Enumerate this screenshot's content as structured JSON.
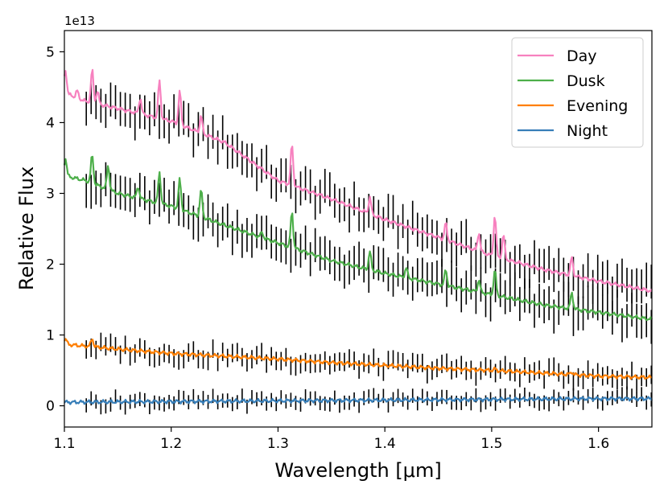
{
  "chart_data": {
    "type": "line",
    "title": "",
    "xlabel": "Wavelength [μm]",
    "ylabel": "Relative Flux",
    "y_offset_text": "1e13",
    "xlim": [
      1.1,
      1.65
    ],
    "ylim": [
      -0.3,
      5.3
    ],
    "x_ticks": [
      1.1,
      1.2,
      1.3,
      1.4,
      1.5,
      1.6
    ],
    "x_tick_labels": [
      "1.1",
      "1.2",
      "1.3",
      "1.4",
      "1.5",
      "1.6"
    ],
    "y_ticks": [
      0,
      1,
      2,
      3,
      4,
      5
    ],
    "y_tick_labels": [
      "0",
      "1",
      "2",
      "3",
      "4",
      "5"
    ],
    "grid": false,
    "legend_position": "top-right",
    "series": [
      {
        "name": "Day",
        "color": "#f781bf",
        "points": [
          [
            1.1,
            4.42
          ],
          [
            1.12,
            4.3
          ],
          [
            1.15,
            4.2
          ],
          [
            1.2,
            4.02
          ],
          [
            1.25,
            3.72
          ],
          [
            1.3,
            3.18
          ],
          [
            1.35,
            2.92
          ],
          [
            1.4,
            2.63
          ],
          [
            1.45,
            2.38
          ],
          [
            1.5,
            2.12
          ],
          [
            1.55,
            1.92
          ],
          [
            1.6,
            1.76
          ],
          [
            1.65,
            1.62
          ]
        ],
        "spikes": [
          [
            1.101,
            4.75
          ],
          [
            1.112,
            4.45
          ],
          [
            1.126,
            4.75
          ],
          [
            1.131,
            4.45
          ],
          [
            1.171,
            4.35
          ],
          [
            1.189,
            4.6
          ],
          [
            1.208,
            4.45
          ],
          [
            1.228,
            4.1
          ],
          [
            1.313,
            3.7
          ],
          [
            1.386,
            2.95
          ],
          [
            1.457,
            2.58
          ],
          [
            1.488,
            2.45
          ],
          [
            1.503,
            2.7
          ],
          [
            1.511,
            2.42
          ],
          [
            1.575,
            2.1
          ]
        ]
      },
      {
        "name": "Dusk",
        "color": "#4daf4a",
        "points": [
          [
            1.1,
            3.25
          ],
          [
            1.12,
            3.18
          ],
          [
            1.15,
            3.0
          ],
          [
            1.2,
            2.82
          ],
          [
            1.25,
            2.55
          ],
          [
            1.3,
            2.3
          ],
          [
            1.35,
            2.05
          ],
          [
            1.4,
            1.87
          ],
          [
            1.45,
            1.72
          ],
          [
            1.5,
            1.57
          ],
          [
            1.55,
            1.42
          ],
          [
            1.6,
            1.32
          ],
          [
            1.65,
            1.22
          ]
        ],
        "spikes": [
          [
            1.101,
            3.5
          ],
          [
            1.126,
            3.55
          ],
          [
            1.141,
            3.4
          ],
          [
            1.169,
            3.1
          ],
          [
            1.189,
            3.3
          ],
          [
            1.208,
            3.2
          ],
          [
            1.228,
            3.05
          ],
          [
            1.285,
            2.45
          ],
          [
            1.313,
            2.75
          ],
          [
            1.386,
            2.18
          ],
          [
            1.42,
            1.95
          ],
          [
            1.457,
            1.92
          ],
          [
            1.488,
            1.78
          ],
          [
            1.503,
            1.92
          ],
          [
            1.575,
            1.6
          ]
        ]
      },
      {
        "name": "Evening",
        "color": "#ff7f00",
        "points": [
          [
            1.1,
            0.87
          ],
          [
            1.15,
            0.8
          ],
          [
            1.2,
            0.74
          ],
          [
            1.25,
            0.7
          ],
          [
            1.3,
            0.66
          ],
          [
            1.35,
            0.61
          ],
          [
            1.4,
            0.57
          ],
          [
            1.45,
            0.53
          ],
          [
            1.5,
            0.5
          ],
          [
            1.55,
            0.46
          ],
          [
            1.6,
            0.42
          ],
          [
            1.65,
            0.4
          ]
        ],
        "spikes": [
          [
            1.101,
            0.95
          ],
          [
            1.126,
            0.95
          ],
          [
            1.503,
            0.52
          ],
          [
            1.575,
            0.48
          ]
        ]
      },
      {
        "name": "Night",
        "color": "#377eb8",
        "points": [
          [
            1.1,
            0.05
          ],
          [
            1.2,
            0.06
          ],
          [
            1.3,
            0.07
          ],
          [
            1.4,
            0.08
          ],
          [
            1.5,
            0.09
          ],
          [
            1.6,
            0.1
          ],
          [
            1.65,
            0.1
          ]
        ],
        "spikes": []
      }
    ],
    "error_bar_data": {
      "color": "#000000",
      "x_start": 1.1205,
      "x_step": 0.00456,
      "count": 149,
      "half_height": [
        0.24,
        0.24,
        0.13,
        0.1
      ],
      "noise_amplitude": [
        0.16,
        0.15,
        0.1,
        0.08
      ]
    }
  }
}
